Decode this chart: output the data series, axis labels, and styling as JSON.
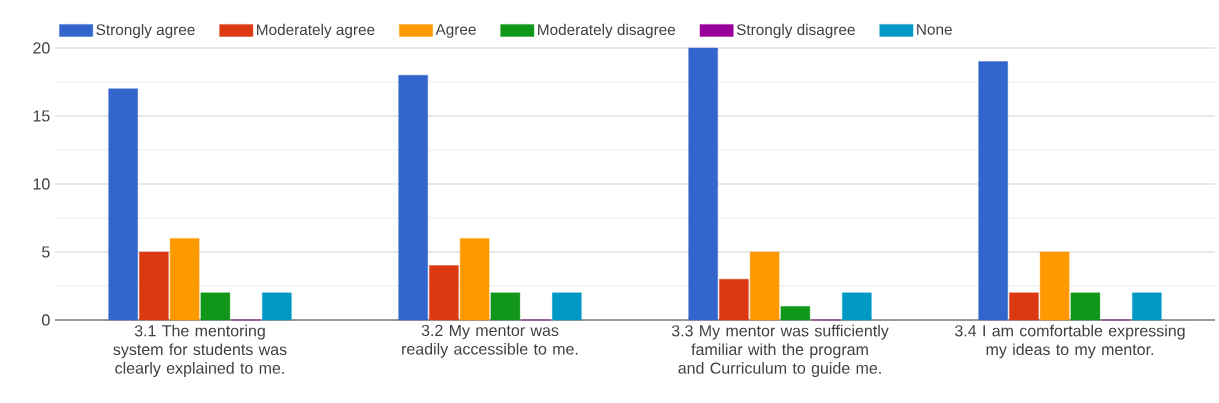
{
  "chart_data": {
    "type": "bar",
    "categories": [
      "3.1 The mentoring system for students was clearly explained to me.",
      "3.2 My mentor was readily accessible to me.",
      "3.3 My mentor was sufficiently familiar with the program and Curriculum to guide me.",
      "3.4 I am comfortable expressing my ideas to my mentor."
    ],
    "series": [
      {
        "name": "Strongly agree",
        "color": "#3366cc",
        "values": [
          17,
          18,
          20,
          19
        ]
      },
      {
        "name": "Moderately agree",
        "color": "#dc3912",
        "values": [
          5,
          4,
          3,
          2
        ]
      },
      {
        "name": "Agree",
        "color": "#ff9900",
        "values": [
          6,
          6,
          5,
          5
        ]
      },
      {
        "name": "Moderately disagree",
        "color": "#109618",
        "values": [
          2,
          2,
          1,
          2
        ]
      },
      {
        "name": "Strongly disagree",
        "color": "#990099",
        "values": [
          0,
          0,
          0,
          0
        ]
      },
      {
        "name": "None",
        "color": "#0099c6",
        "values": [
          2,
          2,
          2,
          2
        ]
      }
    ],
    "ylim": [
      0,
      20
    ],
    "yticks": [
      0,
      5,
      10,
      15,
      20
    ],
    "grid": "y",
    "legend": "top"
  }
}
